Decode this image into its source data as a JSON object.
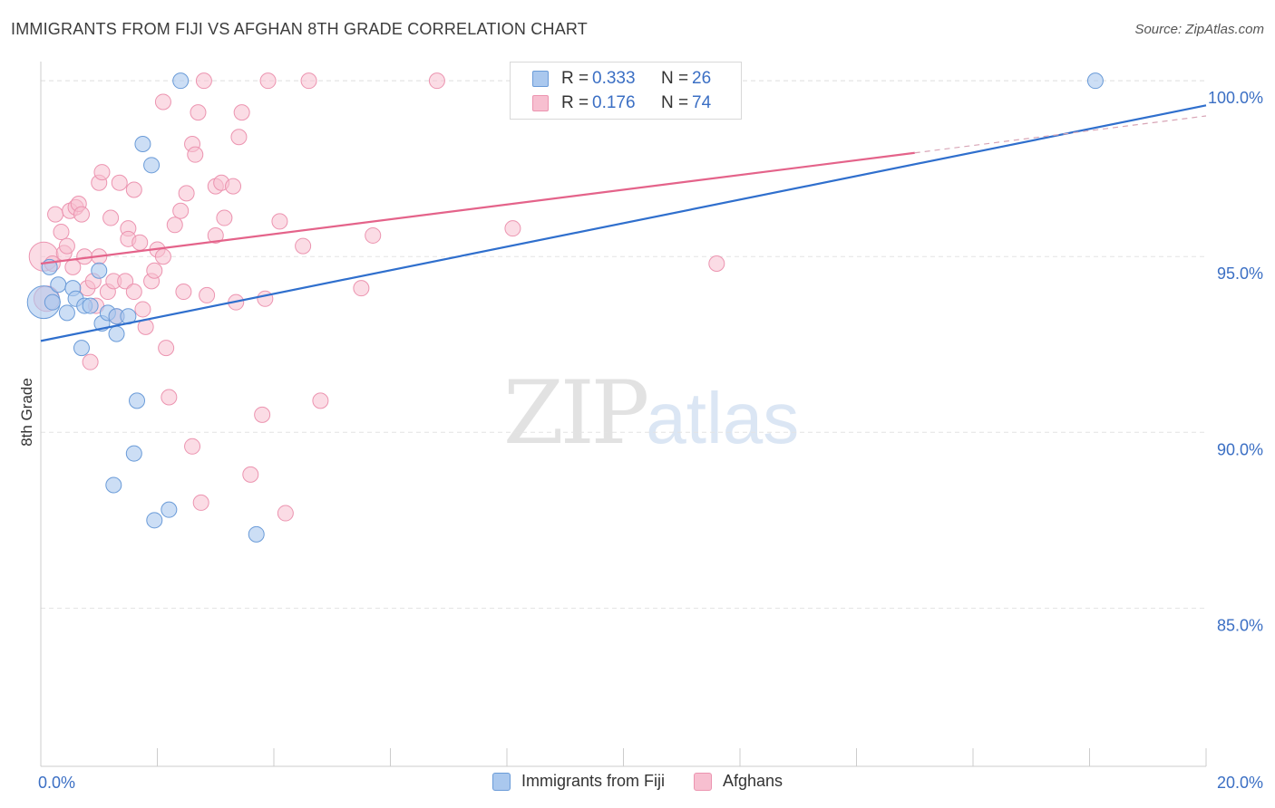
{
  "title": "IMMIGRANTS FROM FIJI VS AFGHAN 8TH GRADE CORRELATION CHART",
  "source": "Source: ZipAtlas.com",
  "watermark": {
    "zip": "ZIP",
    "atlas": "atlas"
  },
  "legend": {
    "fiji": {
      "r_label": "R =",
      "r_value": "0.333",
      "n_label": "N =",
      "n_value": "26"
    },
    "afghan": {
      "r_label": "R =",
      "r_value": "0.176",
      "n_label": "N =",
      "n_value": "74"
    }
  },
  "bottom_legend": {
    "fiji": "Immigrants from Fiji",
    "afghan": "Afghans"
  },
  "chart_data": {
    "type": "scatter",
    "title": "IMMIGRANTS FROM FIJI VS AFGHAN 8TH GRADE CORRELATION CHART",
    "xlabel": "",
    "ylabel": "8th Grade",
    "xlim": [
      0.0,
      20.0
    ],
    "ylim": [
      80.5,
      100.7
    ],
    "x_tick_labels": [
      "0.0%",
      "20.0%"
    ],
    "y_ticks": [
      85.0,
      90.0,
      95.0,
      100.0
    ],
    "y_tick_labels": [
      "85.0%",
      "90.0%",
      "95.0%",
      "100.0%"
    ],
    "colors": {
      "fiji_fill": "#aac8ee",
      "fiji_stroke": "#6a9bd8",
      "fiji_line": "#2f6fcd",
      "afghan_fill": "#f7bfd0",
      "afghan_stroke": "#ec94b0",
      "afghan_line": "#e4638a",
      "grid": "#e3e3e3",
      "tick_text": "#3b6fc4"
    },
    "series": [
      {
        "name": "Immigrants from Fiji",
        "trend": {
          "x": [
            0.0,
            20.0
          ],
          "y": [
            92.6,
            99.3
          ]
        },
        "points": [
          {
            "x": 0.05,
            "y": 93.7,
            "size": 18
          },
          {
            "x": 0.15,
            "y": 94.7
          },
          {
            "x": 0.3,
            "y": 94.2
          },
          {
            "x": 0.2,
            "y": 93.7
          },
          {
            "x": 0.45,
            "y": 93.4
          },
          {
            "x": 0.55,
            "y": 94.1
          },
          {
            "x": 0.6,
            "y": 93.8
          },
          {
            "x": 0.75,
            "y": 93.6
          },
          {
            "x": 0.85,
            "y": 93.6
          },
          {
            "x": 0.7,
            "y": 92.4
          },
          {
            "x": 1.0,
            "y": 94.6
          },
          {
            "x": 1.05,
            "y": 93.1
          },
          {
            "x": 1.15,
            "y": 93.4
          },
          {
            "x": 1.3,
            "y": 93.3
          },
          {
            "x": 1.3,
            "y": 92.8
          },
          {
            "x": 1.5,
            "y": 93.3
          },
          {
            "x": 1.75,
            "y": 98.2
          },
          {
            "x": 1.9,
            "y": 97.6
          },
          {
            "x": 2.4,
            "y": 100.0
          },
          {
            "x": 1.65,
            "y": 90.9
          },
          {
            "x": 1.6,
            "y": 89.4
          },
          {
            "x": 1.25,
            "y": 88.5
          },
          {
            "x": 1.95,
            "y": 87.5
          },
          {
            "x": 2.2,
            "y": 87.8
          },
          {
            "x": 3.7,
            "y": 87.1
          },
          {
            "x": 18.1,
            "y": 100.0
          }
        ]
      },
      {
        "name": "Afghans",
        "trend": {
          "x": [
            0.0,
            15.0
          ],
          "y": [
            94.8,
            97.95
          ]
        },
        "trend_dashed": {
          "x": [
            15.0,
            20.0
          ],
          "y": [
            97.95,
            99.0
          ]
        },
        "points": [
          {
            "x": 0.05,
            "y": 95.0,
            "size": 16
          },
          {
            "x": 0.1,
            "y": 93.8,
            "size": 14
          },
          {
            "x": 0.2,
            "y": 94.8
          },
          {
            "x": 0.25,
            "y": 96.2
          },
          {
            "x": 0.35,
            "y": 95.7
          },
          {
            "x": 0.4,
            "y": 95.1
          },
          {
            "x": 0.45,
            "y": 95.3
          },
          {
            "x": 0.5,
            "y": 96.3
          },
          {
            "x": 0.6,
            "y": 96.4
          },
          {
            "x": 0.65,
            "y": 96.5
          },
          {
            "x": 0.7,
            "y": 96.2
          },
          {
            "x": 0.75,
            "y": 95.0
          },
          {
            "x": 0.8,
            "y": 94.1
          },
          {
            "x": 0.85,
            "y": 92.0
          },
          {
            "x": 0.9,
            "y": 94.3
          },
          {
            "x": 1.0,
            "y": 95.0
          },
          {
            "x": 1.0,
            "y": 97.1
          },
          {
            "x": 1.05,
            "y": 97.4
          },
          {
            "x": 1.15,
            "y": 94.0
          },
          {
            "x": 1.2,
            "y": 96.1
          },
          {
            "x": 1.25,
            "y": 94.3
          },
          {
            "x": 1.3,
            "y": 93.3
          },
          {
            "x": 1.35,
            "y": 97.1
          },
          {
            "x": 1.45,
            "y": 94.3
          },
          {
            "x": 1.5,
            "y": 95.8
          },
          {
            "x": 1.5,
            "y": 95.5
          },
          {
            "x": 1.6,
            "y": 94.0
          },
          {
            "x": 1.6,
            "y": 96.9
          },
          {
            "x": 1.7,
            "y": 95.4
          },
          {
            "x": 1.75,
            "y": 93.5
          },
          {
            "x": 1.8,
            "y": 93.0
          },
          {
            "x": 1.9,
            "y": 94.3
          },
          {
            "x": 1.95,
            "y": 94.6
          },
          {
            "x": 2.0,
            "y": 95.2
          },
          {
            "x": 2.1,
            "y": 95.0
          },
          {
            "x": 2.1,
            "y": 99.4
          },
          {
            "x": 2.15,
            "y": 92.4
          },
          {
            "x": 2.2,
            "y": 91.0
          },
          {
            "x": 2.3,
            "y": 95.9
          },
          {
            "x": 2.4,
            "y": 96.3
          },
          {
            "x": 2.45,
            "y": 94.0
          },
          {
            "x": 2.5,
            "y": 96.8
          },
          {
            "x": 2.6,
            "y": 98.2
          },
          {
            "x": 2.6,
            "y": 89.6
          },
          {
            "x": 2.65,
            "y": 97.9
          },
          {
            "x": 2.7,
            "y": 99.1
          },
          {
            "x": 2.75,
            "y": 88.0
          },
          {
            "x": 2.8,
            "y": 100.0
          },
          {
            "x": 2.85,
            "y": 93.9
          },
          {
            "x": 3.0,
            "y": 97.0
          },
          {
            "x": 3.0,
            "y": 95.6
          },
          {
            "x": 3.1,
            "y": 97.1
          },
          {
            "x": 3.15,
            "y": 96.1
          },
          {
            "x": 3.3,
            "y": 97.0
          },
          {
            "x": 3.35,
            "y": 93.7
          },
          {
            "x": 3.4,
            "y": 98.4
          },
          {
            "x": 3.45,
            "y": 99.1
          },
          {
            "x": 3.6,
            "y": 88.8
          },
          {
            "x": 3.8,
            "y": 90.5
          },
          {
            "x": 3.85,
            "y": 93.8
          },
          {
            "x": 3.9,
            "y": 100.0
          },
          {
            "x": 4.1,
            "y": 96.0
          },
          {
            "x": 4.2,
            "y": 87.7
          },
          {
            "x": 4.5,
            "y": 95.3
          },
          {
            "x": 4.6,
            "y": 100.0
          },
          {
            "x": 4.8,
            "y": 90.9
          },
          {
            "x": 5.5,
            "y": 94.1
          },
          {
            "x": 5.7,
            "y": 95.6
          },
          {
            "x": 6.8,
            "y": 100.0
          },
          {
            "x": 8.1,
            "y": 95.8
          },
          {
            "x": 10.4,
            "y": 100.0
          },
          {
            "x": 11.6,
            "y": 94.8
          },
          {
            "x": 0.55,
            "y": 94.7
          },
          {
            "x": 0.95,
            "y": 93.6
          }
        ]
      }
    ]
  }
}
